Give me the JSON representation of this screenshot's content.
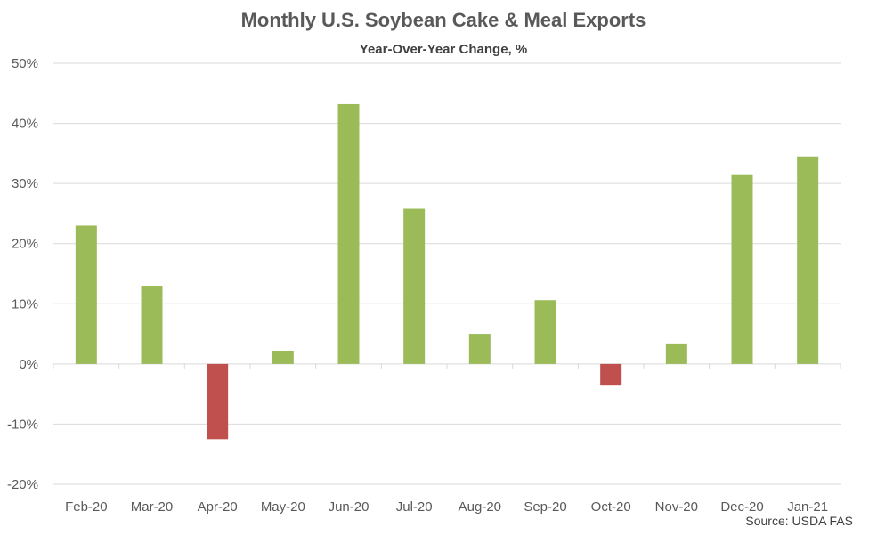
{
  "chart_data": {
    "type": "bar",
    "title": "Monthly U.S. Soybean Cake & Meal Exports",
    "subtitle": "Year-Over-Year Change, %",
    "source": "Source: USDA FAS",
    "categories": [
      "Feb-20",
      "Mar-20",
      "Apr-20",
      "May-20",
      "Jun-20",
      "Jul-20",
      "Aug-20",
      "Sep-20",
      "Oct-20",
      "Nov-20",
      "Dec-20",
      "Jan-21"
    ],
    "values": [
      23.0,
      13.0,
      -12.5,
      2.2,
      43.2,
      25.8,
      5.0,
      10.6,
      -3.6,
      3.4,
      31.4,
      34.5
    ],
    "ylim": [
      -20,
      50
    ],
    "yticks": [
      -20,
      -10,
      0,
      10,
      20,
      30,
      40,
      50
    ],
    "ytick_labels": [
      "-20%",
      "-10%",
      "0%",
      "10%",
      "20%",
      "30%",
      "40%",
      "50%"
    ],
    "grid": true,
    "legend": "none",
    "colors": {
      "positive": "#9BBB59",
      "negative": "#C0504D",
      "grid": "#D9D9D9",
      "axis": "#D9D9D9"
    }
  }
}
